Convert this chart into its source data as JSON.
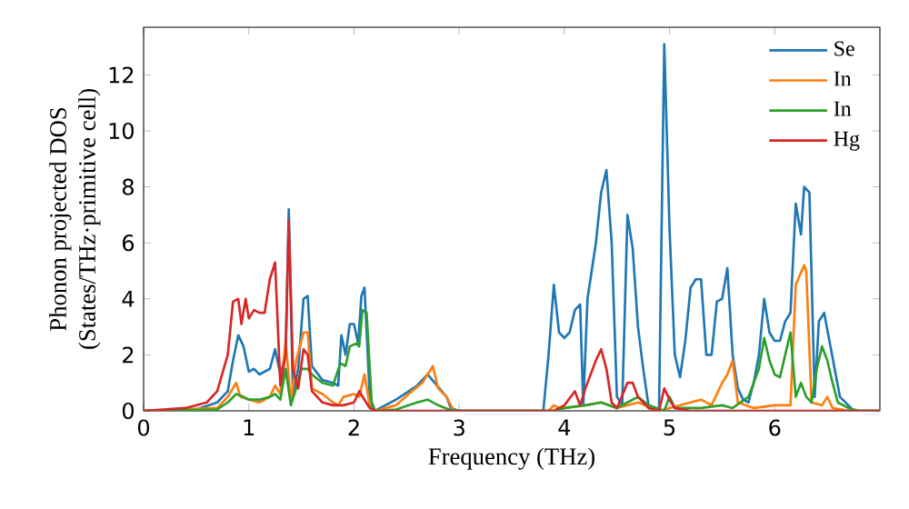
{
  "chart_data": {
    "type": "line",
    "xlabel": "Frequency (THz)",
    "ylabel": "Phonon projected DOS (States/THz·primitive cell)",
    "xlim": [
      0,
      7
    ],
    "ylim": [
      0,
      13.7
    ],
    "xticks": [
      0,
      1,
      2,
      3,
      4,
      5,
      6
    ],
    "yticks": [
      0,
      2,
      4,
      6,
      8,
      10,
      12
    ],
    "legend": "top right",
    "grid": false,
    "line_style": "solid",
    "marker": "none",
    "series": [
      {
        "name": "Se",
        "color": "#1f77b4",
        "x": [
          0,
          0.5,
          0.7,
          0.8,
          0.85,
          0.9,
          0.95,
          1.0,
          1.05,
          1.1,
          1.2,
          1.25,
          1.3,
          1.35,
          1.38,
          1.42,
          1.47,
          1.52,
          1.56,
          1.6,
          1.7,
          1.8,
          1.85,
          1.88,
          1.92,
          1.96,
          2.0,
          2.04,
          2.07,
          2.1,
          2.15,
          2.2,
          2.4,
          2.6,
          2.7,
          2.75,
          2.8,
          2.88,
          2.92,
          3.0,
          3.8,
          3.85,
          3.9,
          3.95,
          4.0,
          4.05,
          4.1,
          4.15,
          4.18,
          4.22,
          4.3,
          4.35,
          4.4,
          4.45,
          4.5,
          4.55,
          4.6,
          4.65,
          4.7,
          4.75,
          4.8,
          4.9,
          4.95,
          5.0,
          5.05,
          5.1,
          5.15,
          5.2,
          5.25,
          5.3,
          5.35,
          5.4,
          5.45,
          5.5,
          5.55,
          5.6,
          5.65,
          5.7,
          5.75,
          5.8,
          5.85,
          5.9,
          5.95,
          6.0,
          6.05,
          6.1,
          6.15,
          6.2,
          6.25,
          6.28,
          6.33,
          6.38,
          6.42,
          6.47,
          6.52,
          6.57,
          6.62,
          6.7,
          6.75,
          7.0
        ],
        "values": [
          0,
          0.05,
          0.3,
          0.7,
          1.8,
          2.7,
          2.3,
          1.4,
          1.5,
          1.3,
          1.5,
          2.2,
          1.3,
          2.0,
          7.2,
          0.5,
          1.5,
          4.0,
          4.1,
          1.6,
          1.1,
          1.0,
          0.9,
          2.7,
          2.0,
          3.1,
          3.1,
          2.4,
          4.1,
          4.4,
          0.5,
          0,
          0.4,
          0.9,
          1.3,
          null,
          null,
          0.5,
          0.1,
          0,
          0,
          2.0,
          4.5,
          2.8,
          2.6,
          2.8,
          3.6,
          3.8,
          0.2,
          4.0,
          6.0,
          7.8,
          8.6,
          6.0,
          0.5,
          0.2,
          7.0,
          5.8,
          3.0,
          1.5,
          0.2,
          0,
          13.1,
          6.5,
          2.0,
          1.2,
          2.5,
          4.4,
          4.7,
          4.7,
          2.0,
          2.0,
          3.9,
          4.0,
          5.1,
          2.0,
          0.8,
          0.4,
          0.3,
          1.0,
          2.0,
          4.0,
          2.8,
          2.5,
          2.5,
          3.2,
          3.5,
          7.4,
          6.3,
          8.0,
          7.8,
          0.5,
          3.2,
          3.5,
          2.5,
          1.5,
          0.5,
          0.2,
          0,
          0
        ]
      },
      {
        "name": "In",
        "color": "#ff7f0e",
        "x": [
          0,
          0.7,
          0.8,
          0.88,
          0.92,
          1.0,
          1.1,
          1.2,
          1.25,
          1.3,
          1.35,
          1.4,
          1.45,
          1.52,
          1.56,
          1.6,
          1.7,
          1.8,
          1.85,
          1.9,
          2.0,
          2.05,
          2.1,
          2.15,
          2.2,
          2.4,
          2.55,
          2.65,
          2.7,
          2.75,
          2.8,
          2.88,
          2.95,
          3.85,
          3.9,
          3.95,
          4.0,
          4.2,
          4.35,
          4.5,
          4.7,
          4.9,
          5.0,
          5.2,
          5.3,
          5.4,
          5.5,
          5.55,
          5.6,
          5.65,
          5.8,
          6.0,
          6.15,
          6.2,
          6.28,
          6.3,
          6.35,
          6.45,
          6.5,
          6.55,
          6.7,
          7.0
        ],
        "values": [
          0,
          0.1,
          0.5,
          1.0,
          0.5,
          0.4,
          0.3,
          0.5,
          0.9,
          0.6,
          2.5,
          0.3,
          1.8,
          2.8,
          2.8,
          0.8,
          0.6,
          0.3,
          0.2,
          0.5,
          0.6,
          0.5,
          1.3,
          0.2,
          0,
          0.2,
          0.7,
          1.0,
          1.3,
          1.6,
          0.8,
          0.5,
          0,
          0,
          0.2,
          0.1,
          0.1,
          0.2,
          0.3,
          0.1,
          0.3,
          0,
          0.1,
          0.3,
          0.4,
          0.2,
          1.0,
          1.3,
          1.8,
          0.3,
          0.1,
          0.2,
          0.2,
          4.5,
          5.2,
          5.0,
          0.3,
          0.2,
          0.5,
          0.1,
          0,
          0
        ]
      },
      {
        "name": "In",
        "color": "#2ca02c",
        "x": [
          0,
          0.7,
          0.8,
          0.88,
          0.95,
          1.0,
          1.1,
          1.2,
          1.25,
          1.3,
          1.35,
          1.4,
          1.45,
          1.5,
          1.56,
          1.6,
          1.7,
          1.8,
          1.87,
          1.92,
          1.96,
          2.02,
          2.05,
          2.08,
          2.12,
          2.17,
          2.2,
          2.4,
          2.6,
          2.7,
          2.8,
          2.9,
          3.0,
          3.9,
          4.0,
          4.2,
          4.35,
          4.5,
          4.6,
          4.7,
          4.8,
          4.95,
          5.0,
          5.05,
          5.3,
          5.5,
          5.6,
          5.75,
          5.85,
          5.9,
          5.95,
          6.0,
          6.05,
          6.1,
          6.15,
          6.2,
          6.25,
          6.3,
          6.35,
          6.4,
          6.45,
          6.5,
          6.55,
          6.6,
          6.7,
          6.8,
          7.0
        ],
        "values": [
          0,
          0.05,
          0.3,
          0.6,
          0.5,
          0.4,
          0.4,
          0.5,
          0.6,
          0.4,
          1.5,
          0.2,
          0.8,
          1.5,
          1.5,
          1.3,
          1.0,
          0.9,
          1.7,
          1.6,
          2.3,
          2.4,
          2.3,
          3.6,
          3.5,
          0.2,
          0,
          0.05,
          0.3,
          0.4,
          0.2,
          0.05,
          0,
          0,
          0.1,
          0.2,
          0.3,
          0.1,
          0.3,
          0.5,
          0.2,
          0,
          0.5,
          0.1,
          0.1,
          0.2,
          0.1,
          0.5,
          1.5,
          2.6,
          1.8,
          1.3,
          1.2,
          2.0,
          2.8,
          0.5,
          1.0,
          0.5,
          0.3,
          1.5,
          2.3,
          1.8,
          1.0,
          0.3,
          0.1,
          0,
          0
        ]
      },
      {
        "name": "Hg",
        "color": "#d62728",
        "x": [
          0,
          0.4,
          0.6,
          0.7,
          0.8,
          0.85,
          0.9,
          0.93,
          0.97,
          1.0,
          1.05,
          1.1,
          1.15,
          1.2,
          1.25,
          1.3,
          1.35,
          1.38,
          1.42,
          1.47,
          1.52,
          1.56,
          1.6,
          1.7,
          1.8,
          1.9,
          2.0,
          2.05,
          2.1,
          2.15,
          2.2,
          3.9,
          4.0,
          4.1,
          4.15,
          4.2,
          4.3,
          4.35,
          4.4,
          4.45,
          4.5,
          4.6,
          4.65,
          4.7,
          4.8,
          4.9,
          4.95,
          5.0,
          5.05,
          5.2,
          7.0
        ],
        "values": [
          0,
          0.1,
          0.3,
          0.7,
          2.0,
          3.9,
          4.0,
          3.1,
          4.0,
          3.3,
          3.6,
          3.5,
          3.5,
          4.7,
          5.3,
          0.9,
          2.0,
          6.8,
          1.5,
          0.8,
          2.2,
          2.0,
          0.7,
          0.3,
          0.2,
          0.2,
          0.3,
          0.7,
          0.4,
          0.1,
          0,
          0,
          0.2,
          0.7,
          0.2,
          0.8,
          1.8,
          2.2,
          1.5,
          0.3,
          0.1,
          1.0,
          1.0,
          0.5,
          0.1,
          0,
          0.8,
          0.4,
          0.1,
          0,
          0
        ]
      }
    ]
  }
}
